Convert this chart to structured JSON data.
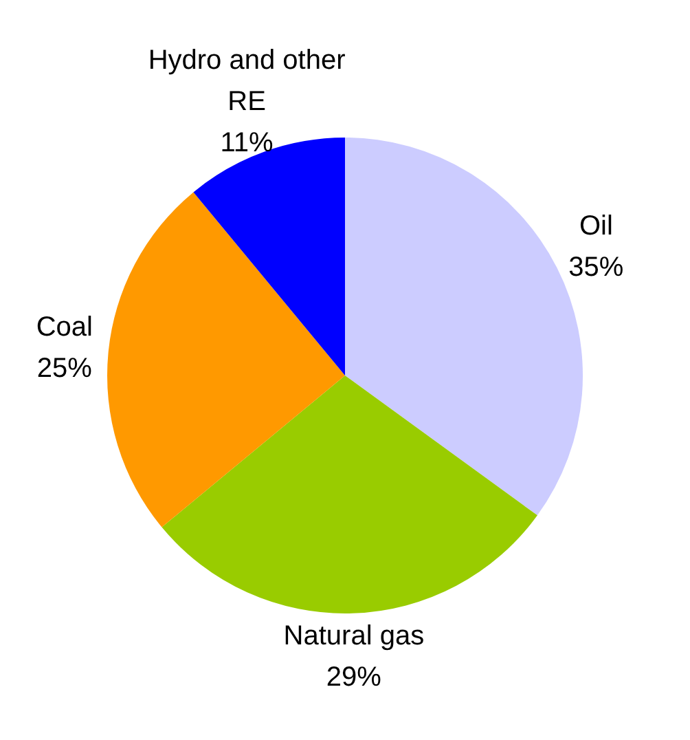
{
  "chart_data": {
    "type": "pie",
    "categories": [
      "Oil",
      "Natural gas",
      "Coal",
      "Hydro and other RE"
    ],
    "values": [
      35,
      29,
      25,
      11
    ],
    "value_labels": [
      "35%",
      "29%",
      "25%",
      "11%"
    ],
    "colors": [
      "#ccccff",
      "#99cc00",
      "#ff9900",
      "#0000ff"
    ],
    "legend": false
  }
}
